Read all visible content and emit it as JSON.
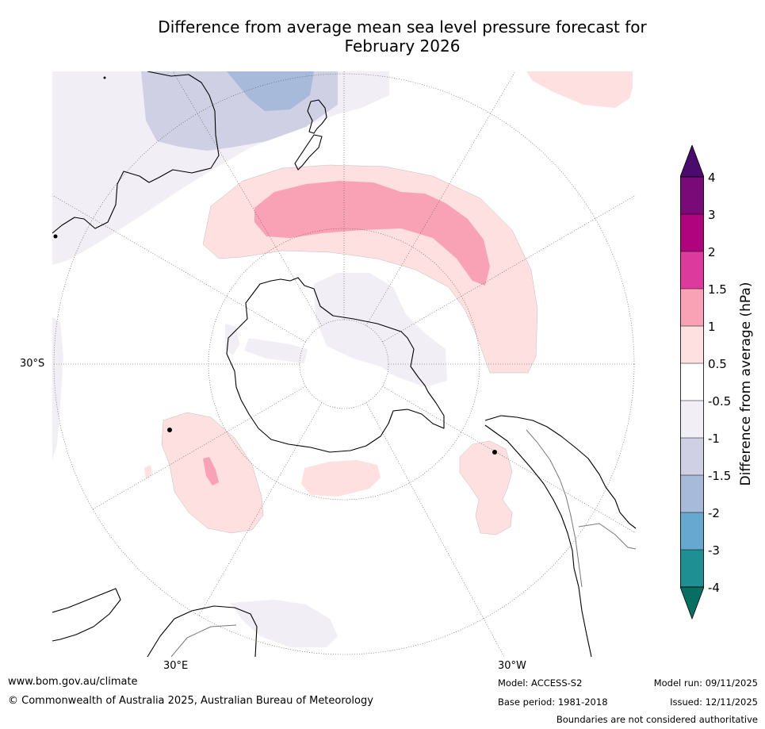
{
  "title": {
    "line1": "Difference from average mean sea level pressure forecast for",
    "line2": "February 2026"
  },
  "map": {
    "projection": "south-polar-stereographic",
    "latitude_label": "30°S",
    "longitude_labels": {
      "east": "30°E",
      "west": "30°W"
    },
    "colors": {
      "ocean": "#ffffff",
      "land_outline": "#000000",
      "border": "#777777",
      "grid": "#555555"
    }
  },
  "legend": {
    "title": "Difference from average (hPa)",
    "ticks": [
      "4",
      "3",
      "2",
      "1.5",
      "1",
      "0.5",
      "-0.5",
      "-1",
      "-1.5",
      "-2",
      "-3",
      "-4"
    ],
    "colors_top_to_bottom": [
      "#4b0b6e",
      "#7a0a78",
      "#b0047e",
      "#dc3a9c",
      "#f9a2b6",
      "#fde0df",
      "#ffffff",
      "#f2eef5",
      "#cfd0e4",
      "#a7bad9",
      "#67a8d0",
      "#1e8f93",
      "#066f62"
    ]
  },
  "footer": {
    "website": "www.bom.gov.au/climate",
    "copyright": "© Commonwealth of Australia 2025, Australian Bureau of Meteorology",
    "model": "Model: ACCESS-S2",
    "base_period": "Base period: 1981-2018",
    "model_run": "Model run: 09/11/2025",
    "issued": "Issued: 12/11/2025",
    "disclaimer": "Boundaries are not considered authoritative"
  }
}
